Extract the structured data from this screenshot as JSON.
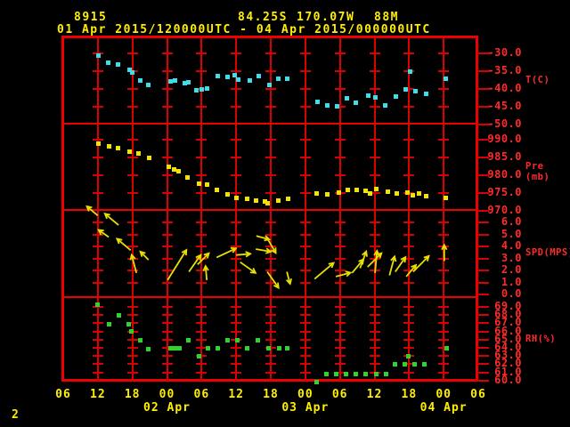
{
  "colors": {
    "background": "#000000",
    "frame_red": "#ef0000",
    "grid_red": "#d80000",
    "label_red": "#ff2a2a",
    "text_yellow": "#ffee00",
    "temperature_cyan": "#3fdde8",
    "pressure_yellow": "#f2e300",
    "wind_yellow": "#e8e000",
    "humidity_green": "#2ed32e"
  },
  "header": {
    "station_id": "8915",
    "latitude": "84.25S",
    "longitude": "170.07W",
    "elevation": "88M",
    "time_range": "01 Apr 2015/120000UTC - 04 Apr 2015/000000UTC"
  },
  "footer": {
    "page_number": "2"
  },
  "chart_data": {
    "type": "scatter",
    "x_range_hours": [
      0,
      72
    ],
    "x_tick_step_hours": 6,
    "x_tick_labels": [
      "06",
      "12",
      "18",
      "00",
      "06",
      "12",
      "18",
      "00",
      "06",
      "12",
      "18",
      "00",
      "06"
    ],
    "date_labels": [
      {
        "hour": 18,
        "label": "02 Apr"
      },
      {
        "hour": 42,
        "label": "03 Apr"
      },
      {
        "hour": 66,
        "label": "04 Apr"
      }
    ],
    "panels": [
      {
        "key": "temperature",
        "ylabel": "T(C)",
        "tick_labels": [
          "-30.0",
          "-35.0",
          "-40.0",
          "-45.0",
          "-50.0"
        ],
        "color": "#3fdde8",
        "points": [
          [
            6.0,
            -30.5
          ],
          [
            7.7,
            -32.5
          ],
          [
            9.4,
            -33.0
          ],
          [
            11.4,
            -34.5
          ],
          [
            11.9,
            -35.3
          ],
          [
            13.3,
            -37.5
          ],
          [
            14.7,
            -38.8
          ],
          [
            18.5,
            -37.8
          ],
          [
            19.3,
            -37.5
          ],
          [
            21.0,
            -38.3
          ],
          [
            21.6,
            -38.0
          ],
          [
            23.0,
            -40.3
          ],
          [
            24.0,
            -40.0
          ],
          [
            24.9,
            -39.8
          ],
          [
            26.7,
            -36.3
          ],
          [
            28.4,
            -36.5
          ],
          [
            29.7,
            -36.0
          ],
          [
            30.3,
            -37.3
          ],
          [
            32.3,
            -37.5
          ],
          [
            33.8,
            -36.3
          ],
          [
            35.7,
            -38.8
          ],
          [
            37.2,
            -37.0
          ],
          [
            38.8,
            -37.0
          ],
          [
            44.0,
            -43.5
          ],
          [
            45.7,
            -44.5
          ],
          [
            47.4,
            -44.8
          ],
          [
            49.1,
            -42.5
          ],
          [
            50.7,
            -43.8
          ],
          [
            52.8,
            -41.8
          ],
          [
            54.1,
            -42.3
          ],
          [
            55.8,
            -44.5
          ],
          [
            57.6,
            -42.0
          ],
          [
            59.3,
            -40.0
          ],
          [
            60.1,
            -35.0
          ],
          [
            61.0,
            -40.5
          ],
          [
            62.9,
            -41.3
          ],
          [
            66.3,
            -37.0
          ]
        ]
      },
      {
        "key": "pressure",
        "ylabel": "Pre (mb)",
        "tick_labels": [
          "990.0",
          "985.0",
          "980.0",
          "975.0",
          "970.0"
        ],
        "color": "#f2e300",
        "points": [
          [
            6.0,
            989.0
          ],
          [
            7.9,
            988.3
          ],
          [
            9.4,
            987.8
          ],
          [
            11.4,
            986.8
          ],
          [
            13.0,
            986.3
          ],
          [
            14.8,
            985.0
          ],
          [
            18.2,
            982.5
          ],
          [
            19.2,
            981.8
          ],
          [
            19.9,
            981.3
          ],
          [
            21.5,
            979.5
          ],
          [
            23.5,
            977.8
          ],
          [
            24.9,
            977.5
          ],
          [
            26.6,
            976.0
          ],
          [
            28.4,
            974.8
          ],
          [
            30.0,
            973.8
          ],
          [
            31.8,
            973.5
          ],
          [
            33.4,
            973.0
          ],
          [
            34.9,
            972.8
          ],
          [
            35.4,
            972.3
          ],
          [
            37.2,
            973.0
          ],
          [
            38.9,
            973.5
          ],
          [
            43.9,
            975.0
          ],
          [
            45.7,
            974.8
          ],
          [
            47.7,
            975.3
          ],
          [
            49.3,
            976.0
          ],
          [
            50.8,
            976.0
          ],
          [
            52.4,
            975.8
          ],
          [
            53.2,
            975.0
          ],
          [
            54.2,
            976.3
          ],
          [
            56.2,
            975.5
          ],
          [
            57.8,
            975.0
          ],
          [
            59.6,
            975.3
          ],
          [
            60.6,
            974.5
          ],
          [
            61.7,
            975.0
          ],
          [
            62.9,
            974.3
          ],
          [
            66.3,
            973.8
          ]
        ]
      },
      {
        "key": "wind_speed",
        "ylabel": "SPD(MPS)",
        "tick_labels": [
          "6.0",
          "5.0",
          "4.0",
          "3.0",
          "2.0",
          "1.0",
          "0.0"
        ],
        "color": "#e8e000",
        "arrows": [
          [
            6.0,
            6.6,
            140,
            16
          ],
          [
            7.9,
            4.8,
            145,
            14
          ],
          [
            9.6,
            5.8,
            140,
            20
          ],
          [
            11.7,
            3.7,
            140,
            20
          ],
          [
            12.7,
            1.8,
            105,
            21
          ],
          [
            14.8,
            2.9,
            135,
            13
          ],
          [
            18.1,
            1.2,
            58,
            40
          ],
          [
            21.8,
            1.9,
            55,
            23
          ],
          [
            23.3,
            2.5,
            45,
            18
          ],
          [
            24.9,
            1.2,
            95,
            16
          ],
          [
            26.6,
            3.1,
            25,
            24
          ],
          [
            30.0,
            3.3,
            5,
            16
          ],
          [
            30.7,
            2.7,
            -35,
            21
          ],
          [
            33.4,
            3.8,
            -10,
            17
          ],
          [
            33.5,
            4.9,
            -15,
            15
          ],
          [
            35.4,
            4.7,
            -60,
            19
          ],
          [
            35.4,
            1.9,
            -55,
            22
          ],
          [
            38.8,
            1.9,
            -75,
            14
          ],
          [
            43.6,
            1.3,
            40,
            28
          ],
          [
            47.3,
            1.5,
            15,
            17
          ],
          [
            50.1,
            1.8,
            50,
            20
          ],
          [
            51.5,
            2.2,
            70,
            20
          ],
          [
            52.8,
            2.3,
            45,
            22
          ],
          [
            54.1,
            1.8,
            85,
            25
          ],
          [
            56.6,
            1.6,
            75,
            22
          ],
          [
            57.6,
            1.9,
            55,
            20
          ],
          [
            59.5,
            1.5,
            50,
            17
          ],
          [
            60.7,
            1.9,
            45,
            25
          ],
          [
            66.1,
            2.8,
            90,
            18
          ]
        ]
      },
      {
        "key": "relative_humidity",
        "ylabel": "RH(%)",
        "tick_labels": [
          "69.0",
          "68.0",
          "67.0",
          "66.0",
          "65.0",
          "64.0",
          "63.0",
          "62.0",
          "61.0",
          "60.0"
        ],
        "color": "#2ed32e",
        "points": [
          [
            5.9,
            69.3
          ],
          [
            7.9,
            66.9
          ],
          [
            9.6,
            68.0
          ],
          [
            11.3,
            66.9
          ],
          [
            11.7,
            66.1
          ],
          [
            13.3,
            65.0
          ],
          [
            14.7,
            63.9
          ],
          [
            18.5,
            64.0
          ],
          [
            19.3,
            64.0
          ],
          [
            20.1,
            64.0
          ],
          [
            21.6,
            65.0
          ],
          [
            23.5,
            63.0
          ],
          [
            25.0,
            64.0
          ],
          [
            26.7,
            64.0
          ],
          [
            28.4,
            65.0
          ],
          [
            30.1,
            65.0
          ],
          [
            31.8,
            64.0
          ],
          [
            33.7,
            65.0
          ],
          [
            35.5,
            64.0
          ],
          [
            37.4,
            64.0
          ],
          [
            38.8,
            64.0
          ],
          [
            43.9,
            59.9
          ],
          [
            45.6,
            60.9
          ],
          [
            47.3,
            60.9
          ],
          [
            49.0,
            60.8
          ],
          [
            50.7,
            60.8
          ],
          [
            52.4,
            60.9
          ],
          [
            54.2,
            60.9
          ],
          [
            55.9,
            60.8
          ],
          [
            57.5,
            62.0
          ],
          [
            59.2,
            62.0
          ],
          [
            59.8,
            63.0
          ],
          [
            60.9,
            62.0
          ],
          [
            62.6,
            62.0
          ],
          [
            66.4,
            64.0
          ]
        ]
      }
    ]
  }
}
